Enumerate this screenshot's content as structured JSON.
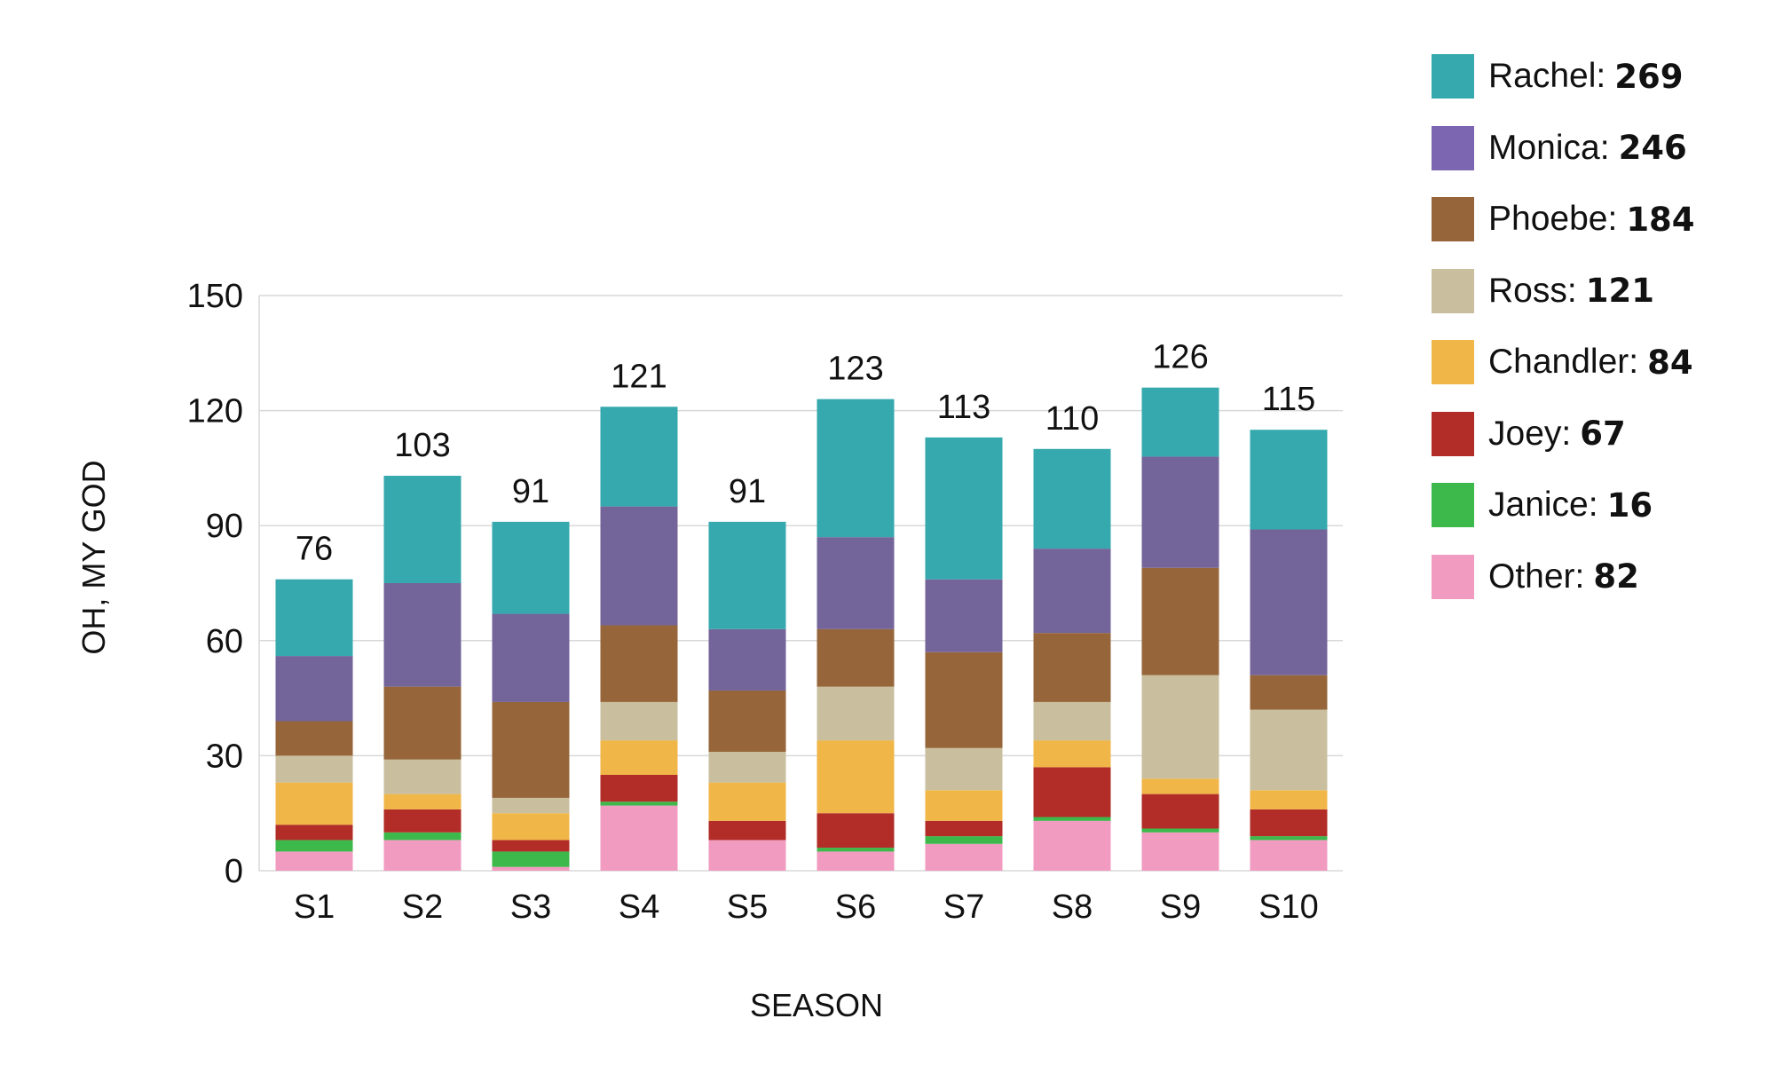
{
  "chart_data": {
    "type": "bar",
    "stacked": true,
    "title": "",
    "xlabel": "SEASON",
    "ylabel": "OH, MY GOD",
    "ylim": [
      0,
      150
    ],
    "yticks": [
      0,
      30,
      60,
      90,
      120,
      150
    ],
    "grid": true,
    "legend_position": "right",
    "categories": [
      "S1",
      "S2",
      "S3",
      "S4",
      "S5",
      "S6",
      "S7",
      "S8",
      "S9",
      "S10"
    ],
    "totals": [
      76,
      103,
      91,
      121,
      91,
      123,
      113,
      110,
      126,
      115
    ],
    "series": [
      {
        "name": "Other",
        "total": 82,
        "color": "#f19bc1",
        "values": [
          5,
          8,
          1,
          17,
          8,
          5,
          7,
          13,
          10,
          8
        ]
      },
      {
        "name": "Janice",
        "total": 16,
        "color": "#3db84a",
        "values": [
          3,
          2,
          4,
          1,
          0,
          1,
          2,
          1,
          1,
          1
        ]
      },
      {
        "name": "Joey",
        "total": 67,
        "color": "#b22d27",
        "values": [
          4,
          6,
          3,
          7,
          5,
          9,
          4,
          13,
          9,
          7
        ]
      },
      {
        "name": "Chandler",
        "total": 84,
        "color": "#f0b648",
        "values": [
          11,
          4,
          7,
          9,
          10,
          19,
          8,
          7,
          4,
          5
        ]
      },
      {
        "name": "Ross",
        "total": 121,
        "color": "#c9bf9f",
        "values": [
          7,
          9,
          4,
          10,
          8,
          14,
          11,
          10,
          27,
          21
        ]
      },
      {
        "name": "Phoebe",
        "total": 184,
        "color": "#96663a",
        "values": [
          9,
          19,
          25,
          20,
          16,
          15,
          25,
          18,
          28,
          9
        ]
      },
      {
        "name": "Monica",
        "total": 246,
        "color": "#73649a",
        "legend_color": "#7d66b1",
        "values": [
          17,
          27,
          23,
          31,
          16,
          24,
          19,
          22,
          29,
          38
        ]
      },
      {
        "name": "Rachel",
        "total": 269,
        "color": "#35a9ad",
        "values": [
          20,
          28,
          24,
          26,
          28,
          36,
          37,
          26,
          18,
          26
        ]
      }
    ]
  }
}
